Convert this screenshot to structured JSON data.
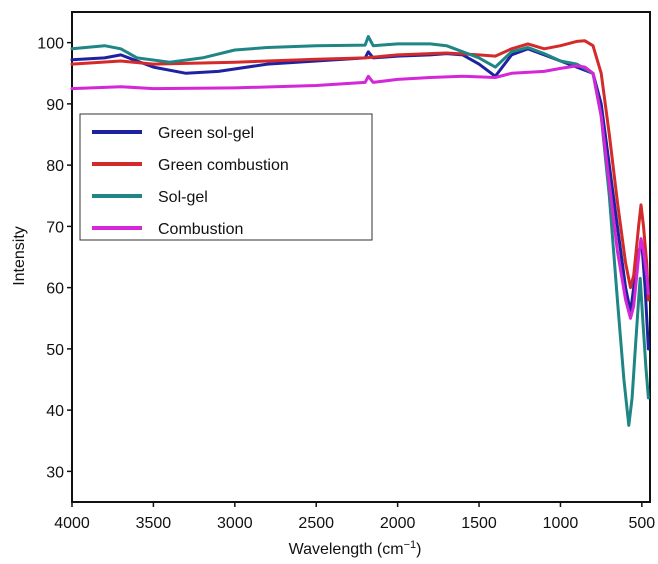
{
  "chart_data": {
    "type": "line",
    "xlabel": "Wavelength (cm",
    "xlabel_sup": "−1",
    "xlabel_close": ")",
    "ylabel": "Intensity",
    "xlim": [
      4000,
      450
    ],
    "ylim": [
      25,
      105
    ],
    "x_reversed": true,
    "xticks": [
      4000,
      3500,
      3000,
      2500,
      2000,
      1500,
      1000,
      500
    ],
    "yticks": [
      30,
      40,
      50,
      60,
      70,
      80,
      90,
      100
    ],
    "grid": false,
    "legend_position": "upper-left",
    "series": [
      {
        "name": "Green sol-gel",
        "color": "#1f22a0",
        "points": [
          [
            4000,
            97.2
          ],
          [
            3800,
            97.5
          ],
          [
            3700,
            98
          ],
          [
            3500,
            96
          ],
          [
            3300,
            95
          ],
          [
            3100,
            95.3
          ],
          [
            2800,
            96.5
          ],
          [
            2500,
            97
          ],
          [
            2200,
            97.5
          ],
          [
            2180,
            98.5
          ],
          [
            2150,
            97.5
          ],
          [
            2000,
            97.8
          ],
          [
            1800,
            98
          ],
          [
            1700,
            98.2
          ],
          [
            1600,
            98
          ],
          [
            1500,
            96.5
          ],
          [
            1400,
            94.5
          ],
          [
            1300,
            98
          ],
          [
            1200,
            99
          ],
          [
            1100,
            98
          ],
          [
            1000,
            97
          ],
          [
            900,
            96
          ],
          [
            800,
            95
          ],
          [
            750,
            90
          ],
          [
            700,
            80
          ],
          [
            650,
            70
          ],
          [
            600,
            60
          ],
          [
            570,
            56
          ],
          [
            550,
            60
          ],
          [
            520,
            66
          ],
          [
            500,
            67
          ],
          [
            480,
            60
          ],
          [
            460,
            50
          ]
        ]
      },
      {
        "name": "Green combustion",
        "color": "#d42a2a",
        "points": [
          [
            4000,
            96.5
          ],
          [
            3700,
            97
          ],
          [
            3500,
            96.5
          ],
          [
            3000,
            96.8
          ],
          [
            2500,
            97.3
          ],
          [
            2200,
            97.5
          ],
          [
            2000,
            98
          ],
          [
            1800,
            98.2
          ],
          [
            1700,
            98.3
          ],
          [
            1500,
            98
          ],
          [
            1400,
            97.8
          ],
          [
            1300,
            99
          ],
          [
            1200,
            99.8
          ],
          [
            1100,
            99
          ],
          [
            1000,
            99.5
          ],
          [
            900,
            100.2
          ],
          [
            850,
            100.3
          ],
          [
            800,
            99.5
          ],
          [
            750,
            95
          ],
          [
            700,
            85
          ],
          [
            650,
            74
          ],
          [
            600,
            64
          ],
          [
            570,
            60
          ],
          [
            550,
            62
          ],
          [
            520,
            70
          ],
          [
            505,
            73.5
          ],
          [
            490,
            70
          ],
          [
            470,
            64
          ],
          [
            460,
            58
          ]
        ]
      },
      {
        "name": "Sol-gel",
        "color": "#1f8585",
        "points": [
          [
            4000,
            99
          ],
          [
            3800,
            99.5
          ],
          [
            3700,
            99
          ],
          [
            3600,
            97.5
          ],
          [
            3400,
            96.8
          ],
          [
            3200,
            97.5
          ],
          [
            3000,
            98.8
          ],
          [
            2800,
            99.2
          ],
          [
            2500,
            99.5
          ],
          [
            2200,
            99.6
          ],
          [
            2180,
            101
          ],
          [
            2150,
            99.5
          ],
          [
            2000,
            99.8
          ],
          [
            1800,
            99.8
          ],
          [
            1700,
            99.5
          ],
          [
            1600,
            98.5
          ],
          [
            1500,
            97.5
          ],
          [
            1400,
            96
          ],
          [
            1300,
            98.5
          ],
          [
            1200,
            99.2
          ],
          [
            1100,
            98.2
          ],
          [
            1000,
            97
          ],
          [
            900,
            96.5
          ],
          [
            800,
            95
          ],
          [
            750,
            88
          ],
          [
            700,
            75
          ],
          [
            650,
            58
          ],
          [
            610,
            45
          ],
          [
            580,
            37.5
          ],
          [
            560,
            42
          ],
          [
            540,
            50
          ],
          [
            520,
            58
          ],
          [
            510,
            61.5
          ],
          [
            495,
            55
          ],
          [
            475,
            47
          ],
          [
            460,
            42
          ]
        ]
      },
      {
        "name": "Combustion",
        "color": "#d427d8",
        "points": [
          [
            4000,
            92.5
          ],
          [
            3700,
            92.8
          ],
          [
            3500,
            92.5
          ],
          [
            3000,
            92.6
          ],
          [
            2500,
            93
          ],
          [
            2200,
            93.5
          ],
          [
            2180,
            94.5
          ],
          [
            2150,
            93.5
          ],
          [
            2000,
            94
          ],
          [
            1800,
            94.3
          ],
          [
            1600,
            94.5
          ],
          [
            1400,
            94.3
          ],
          [
            1300,
            95
          ],
          [
            1100,
            95.3
          ],
          [
            1000,
            95.8
          ],
          [
            900,
            96.2
          ],
          [
            850,
            96
          ],
          [
            800,
            95
          ],
          [
            750,
            88
          ],
          [
            700,
            77
          ],
          [
            650,
            66
          ],
          [
            600,
            58
          ],
          [
            570,
            55
          ],
          [
            550,
            57
          ],
          [
            520,
            65
          ],
          [
            505,
            68
          ],
          [
            490,
            66
          ],
          [
            470,
            62
          ],
          [
            460,
            59
          ]
        ]
      }
    ]
  }
}
